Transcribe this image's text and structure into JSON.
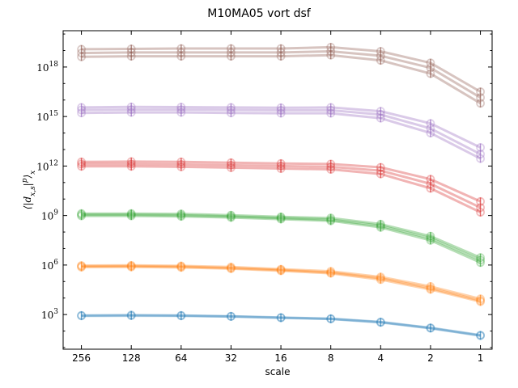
{
  "chart_data": {
    "type": "line",
    "title": "M10MA05 vort dsf",
    "xlabel": "scale",
    "ylabel": "⟨|d",
    "ylabel_sub": "x,s",
    "ylabel_mid": "|",
    "ylabel_sup": "p",
    "ylabel_end": "⟩",
    "ylabel_sub2": "x",
    "x_scale": "log2-reversed",
    "y_scale": "log",
    "x_ticks": [
      "256",
      "128",
      "64",
      "32",
      "16",
      "8",
      "4",
      "2",
      "1"
    ],
    "x_tick_values": [
      256,
      128,
      64,
      32,
      16,
      8,
      4,
      2,
      1
    ],
    "y_ticks": [
      {
        "base": "10",
        "exp": "3",
        "value": 1000.0
      },
      {
        "base": "10",
        "exp": "6",
        "value": 1000000.0
      },
      {
        "base": "10",
        "exp": "9",
        "value": 1000000000.0
      },
      {
        "base": "10",
        "exp": "12",
        "value": 1000000000000.0
      },
      {
        "base": "10",
        "exp": "15",
        "value": 1000000000000000.0
      },
      {
        "base": "10",
        "exp": "18",
        "value": 1e+18
      }
    ],
    "xlim": [
      330,
      0.85
    ],
    "ylim_log10": [
      0.9,
      20.2
    ],
    "grid": false,
    "x": [
      256,
      128,
      64,
      32,
      16,
      8,
      4,
      2,
      1
    ],
    "series": [
      {
        "color": "#1f77b4",
        "p": 1,
        "values_log10": [
          [
            2.95,
            2.97,
            2.95,
            2.9,
            2.82,
            2.75,
            2.55,
            2.2,
            1.75
          ],
          [
            2.92,
            2.93,
            2.92,
            2.88,
            2.8,
            2.73,
            2.52,
            2.17,
            1.72
          ]
        ]
      },
      {
        "color": "#ff7f0e",
        "p": 2,
        "values_log10": [
          [
            5.97,
            5.98,
            5.95,
            5.88,
            5.75,
            5.62,
            5.28,
            4.7,
            3.95
          ],
          [
            5.92,
            5.93,
            5.9,
            5.82,
            5.7,
            5.55,
            5.2,
            4.6,
            3.85
          ],
          [
            5.87,
            5.88,
            5.85,
            5.78,
            5.65,
            5.5,
            5.12,
            4.52,
            3.78
          ]
        ]
      },
      {
        "color": "#2ca02c",
        "p": 3,
        "values_log10": [
          [
            9.12,
            9.12,
            9.1,
            9.02,
            8.92,
            8.85,
            8.48,
            7.75,
            6.45
          ],
          [
            9.05,
            9.05,
            9.02,
            8.95,
            8.85,
            8.75,
            8.38,
            7.62,
            6.3
          ],
          [
            8.98,
            8.98,
            8.95,
            8.88,
            8.78,
            8.68,
            8.28,
            7.5,
            6.15
          ]
        ]
      },
      {
        "color": "#d62728",
        "p": 4,
        "values_log10": [
          [
            12.25,
            12.27,
            12.25,
            12.2,
            12.15,
            12.12,
            11.92,
            11.2,
            9.85
          ],
          [
            12.12,
            12.12,
            12.1,
            12.05,
            12.0,
            11.95,
            11.72,
            10.92,
            9.48
          ],
          [
            11.98,
            11.98,
            11.95,
            11.9,
            11.85,
            11.8,
            11.52,
            10.65,
            9.2
          ]
        ]
      },
      {
        "color": "#9467bd",
        "p": 5,
        "values_log10": [
          [
            15.55,
            15.58,
            15.57,
            15.55,
            15.53,
            15.55,
            15.32,
            14.58,
            13.12
          ],
          [
            15.4,
            15.42,
            15.42,
            15.4,
            15.38,
            15.38,
            15.12,
            14.28,
            12.72
          ],
          [
            15.22,
            15.25,
            15.25,
            15.22,
            15.2,
            15.2,
            14.9,
            14.0,
            12.45
          ]
        ]
      },
      {
        "color": "#8c564b",
        "p": 6,
        "values_log10": [
          [
            19.08,
            19.1,
            19.12,
            19.12,
            19.12,
            19.2,
            18.95,
            18.25,
            16.5
          ],
          [
            18.85,
            18.88,
            18.88,
            18.88,
            18.88,
            18.95,
            18.68,
            17.95,
            16.15
          ],
          [
            18.62,
            18.65,
            18.65,
            18.65,
            18.65,
            18.72,
            18.4,
            17.6,
            15.8
          ]
        ]
      }
    ]
  }
}
